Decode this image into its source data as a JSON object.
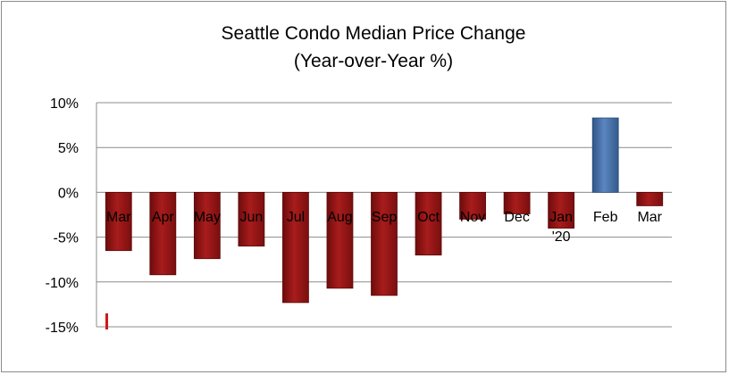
{
  "chart_data": {
    "type": "bar",
    "title": "Seattle Condo Median Price Change",
    "subtitle": "(Year-over-Year %)",
    "xlabel": "",
    "ylabel": "",
    "ylim": [
      -15,
      10
    ],
    "y_ticks": [
      "10%",
      "5%",
      "0%",
      "-5%",
      "-10%",
      "-15%"
    ],
    "y_tick_values": [
      10,
      5,
      0,
      -5,
      -10,
      -15
    ],
    "grid": true,
    "legend": "none",
    "categories": [
      "Mar",
      "Apr",
      "May",
      "Jun",
      "Jul",
      "Aug",
      "Sep",
      "Oct",
      "Nov",
      "Dec",
      "Jan '20",
      "Feb",
      "Mar"
    ],
    "category_lines": [
      [
        "Mar"
      ],
      [
        "Apr"
      ],
      [
        "May"
      ],
      [
        "Jun"
      ],
      [
        "Jul"
      ],
      [
        "Aug"
      ],
      [
        "Sep"
      ],
      [
        "Oct"
      ],
      [
        "Nov"
      ],
      [
        "Dec"
      ],
      [
        "Jan",
        "'20"
      ],
      [
        "Feb"
      ],
      [
        "Mar"
      ]
    ],
    "series": [
      {
        "values": [
          -6.5,
          -9.2,
          -7.4,
          -6.0,
          -12.3,
          -10.7,
          -11.5,
          -7.0,
          -3.0,
          -2.4,
          -4.0,
          8.3,
          -1.5
        ]
      }
    ],
    "colors": {
      "negative": "#9b1616",
      "positive": "#4a72a8",
      "grid": "#8c8c8c",
      "axis": "#8c8c8c",
      "marker": "#d01818"
    }
  }
}
